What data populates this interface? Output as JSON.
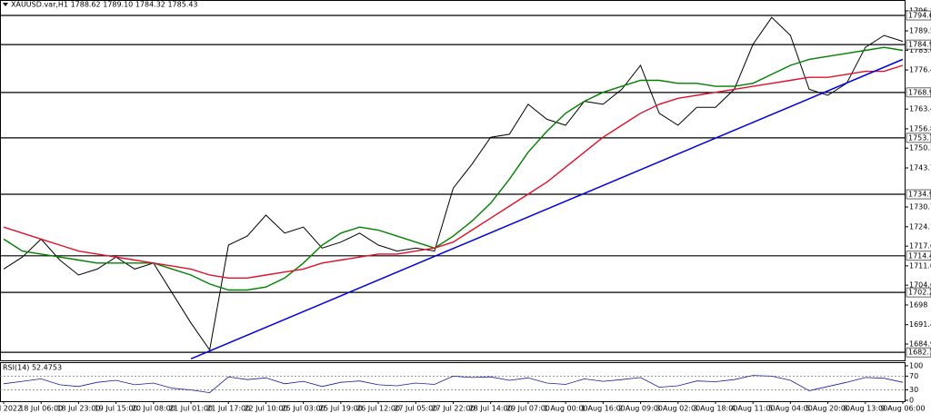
{
  "chart_data": {
    "type": "line",
    "title": "XAUUSD.var,H1  1788.62 1789.10 1784.32 1785.43",
    "categories": [
      "5 Jul 2022",
      null,
      "18 Jul 06:00",
      null,
      "18 Jul 23:00",
      null,
      "19 Jul 15:00",
      null,
      "20 Jul 08:00",
      null,
      "21 Jul 01:00",
      null,
      "21 Jul 17:00",
      null,
      "22 Jul 10:00",
      null,
      "25 Jul 03:00",
      null,
      "25 Jul 19:00",
      null,
      "26 Jul 12:00",
      null,
      "27 Jul 05:00",
      null,
      "27 Jul 22:00",
      null,
      "28 Jul 14:00",
      null,
      "29 Jul 07:00",
      null,
      "1 Aug 00:00",
      null,
      "1 Aug 16:00",
      null,
      "2 Aug 09:00",
      null,
      "3 Aug 02:00",
      null,
      "3 Aug 18:00",
      null,
      "4 Aug 11:00",
      null,
      "5 Aug 04:00",
      null,
      "5 Aug 20:00",
      null,
      "8 Aug 13:00",
      null,
      "9 Aug 06:00"
    ],
    "series": [
      {
        "name": "XAUUSD",
        "color": "#000000",
        "values": [
          1710,
          1714,
          1720,
          1713,
          1708,
          1710,
          1714,
          1710,
          1712,
          1702,
          1692,
          1683,
          1718,
          1721,
          1728,
          1722,
          1724,
          1717,
          1719,
          1722,
          1718,
          1716,
          1717,
          1716,
          1737,
          1745,
          1754,
          1755,
          1765,
          1760,
          1758,
          1766,
          1765,
          1770,
          1778,
          1762,
          1758,
          1764,
          1764,
          1770,
          1785,
          1794,
          1788,
          1770,
          1768,
          1772,
          1784,
          1788,
          1786
        ]
      },
      {
        "name": "MA fast",
        "color": "#008000",
        "values": [
          1720,
          1716,
          1715,
          1714,
          1713,
          1712,
          1712,
          1712,
          1712,
          1710,
          1708,
          1705,
          1703,
          1703,
          1704,
          1707,
          1712,
          1718,
          1722,
          1724,
          1723,
          1721,
          1719,
          1717,
          1721,
          1726,
          1732,
          1740,
          1749,
          1756,
          1762,
          1766,
          1769,
          1771,
          1773,
          1773,
          1772,
          1772,
          1771,
          1771,
          1772,
          1775,
          1778,
          1780,
          1781,
          1782,
          1783,
          1784,
          1783
        ]
      },
      {
        "name": "MA slow",
        "color": "#e0102a",
        "values": [
          1724,
          1722,
          1720,
          1718,
          1716,
          1715,
          1714,
          1713,
          1712,
          1711,
          1710,
          1708,
          1707,
          1707,
          1708,
          1709,
          1710,
          1712,
          1713,
          1714,
          1715,
          1715,
          1716,
          1717,
          1719,
          1723,
          1727,
          1731,
          1735,
          1739,
          1744,
          1749,
          1754,
          1758,
          1762,
          1765,
          1767,
          1768,
          1769,
          1770,
          1771,
          1772,
          1773,
          1774,
          1774,
          1775,
          1776,
          1776,
          1778
        ]
      }
    ],
    "trendline": {
      "color": "#0000dd",
      "start": [
        10,
        1680
      ],
      "end": [
        48,
        1780
      ]
    },
    "levels": [
      1794.66,
      1784.93,
      1768.94,
      1753.78,
      1734.95,
      1714.41,
      1702.2,
      1682.18
    ],
    "ylim": [
      1679.5,
      1798.6
    ],
    "yticks": [
      1796.2,
      1789.5,
      1783.05,
      1776.45,
      1763.4,
      1756.8,
      1750.35,
      1743.75,
      1730.7,
      1724.1,
      1717.65,
      1711.05,
      1704.6,
      1698.0,
      1691.4,
      1684.95,
      1678.35
    ],
    "rsi": {
      "title": "RSI(14) 52.4753",
      "color": "#1a1aa0",
      "ylim": [
        0,
        100
      ],
      "yticks": [
        100,
        70,
        30,
        0
      ],
      "levels": [
        70,
        30
      ],
      "values": [
        48,
        55,
        62,
        45,
        40,
        52,
        58,
        45,
        50,
        35,
        30,
        22,
        68,
        60,
        65,
        48,
        55,
        40,
        52,
        56,
        45,
        42,
        50,
        46,
        70,
        66,
        68,
        58,
        65,
        50,
        46,
        62,
        55,
        60,
        66,
        38,
        42,
        56,
        54,
        60,
        72,
        70,
        58,
        28,
        40,
        52,
        66,
        64,
        52
      ]
    }
  }
}
